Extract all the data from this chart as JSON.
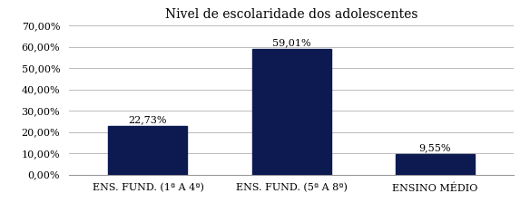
{
  "title": "Nivel de escolaridade dos adolescentes",
  "categories": [
    "ENS. FUND. (1ª A 4ª)",
    "ENS. FUND. (5ª A 8ª)",
    "ENSINO MÉDIO"
  ],
  "values": [
    22.73,
    59.01,
    9.55
  ],
  "labels": [
    "22,73%",
    "59,01%",
    "9,55%"
  ],
  "bar_color": "#0d1a52",
  "ylim": [
    0,
    70
  ],
  "yticks": [
    0,
    10,
    20,
    30,
    40,
    50,
    60,
    70
  ],
  "ytick_labels": [
    "0,00%",
    "10,00%",
    "20,00%",
    "30,00%",
    "40,00%",
    "50,00%",
    "60,00%",
    "70,00%"
  ],
  "background_color": "#ffffff",
  "grid_color": "#bbbbbb",
  "title_fontsize": 10,
  "label_fontsize": 8,
  "tick_fontsize": 8,
  "bar_width": 0.55,
  "xlim": [
    -0.55,
    2.55
  ]
}
